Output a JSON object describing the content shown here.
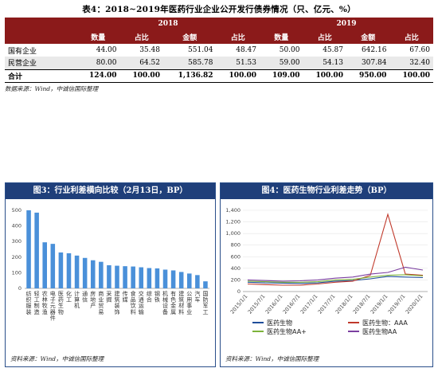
{
  "table": {
    "title": "表4：2018~2019年医药行业企业公开发行债券情况（只、亿元、%）",
    "years": [
      "2018",
      "2019"
    ],
    "columns": [
      "数量",
      "占比",
      "金额",
      "占比",
      "数量",
      "占比",
      "金额",
      "占比"
    ],
    "rows": [
      {
        "label": "国有企业",
        "values": [
          "44.00",
          "35.48",
          "551.04",
          "48.47",
          "50.00",
          "45.87",
          "642.16",
          "67.60"
        ]
      },
      {
        "label": "民营企业",
        "values": [
          "80.00",
          "64.52",
          "585.78",
          "51.53",
          "59.00",
          "54.13",
          "307.84",
          "32.40"
        ]
      }
    ],
    "total": {
      "label": "合计",
      "values": [
        "124.00",
        "100.00",
        "1,136.82",
        "100.00",
        "109.00",
        "100.00",
        "950.00",
        "100.00"
      ]
    },
    "source": "数据来源：Wind，中诚信国际整理"
  },
  "chart3": {
    "title": "图3：行业利差横向比较（2月13日，BP）",
    "source": "资料来源：Wind，中诚信国际整理",
    "chart_data": {
      "type": "bar",
      "categories": [
        "纺织服装",
        "轻工制造",
        "农林牧渔",
        "电子元器件",
        "医药生物",
        "化工",
        "计算机",
        "通信",
        "房地产",
        "商业贸易",
        "采掘",
        "建筑装饰",
        "传媒",
        "食品饮料",
        "交通运输",
        "综合",
        "钢铁",
        "机械设备",
        "有色金属",
        "建筑材料",
        "公用事业",
        "汽车",
        "国防军工"
      ],
      "values": [
        500,
        485,
        295,
        285,
        230,
        225,
        210,
        195,
        180,
        170,
        148,
        145,
        142,
        140,
        135,
        130,
        128,
        120,
        115,
        105,
        95,
        85,
        45
      ],
      "ylim": [
        0,
        500
      ],
      "yticks": [
        "0",
        "100",
        "200",
        "300",
        "400",
        "500"
      ],
      "color": "#4a90d9"
    }
  },
  "chart4": {
    "title": "图4：医药生物行业利差走势（BP）",
    "source": "资料来源：Wind，中诚信国际整理",
    "chart_data": {
      "type": "line",
      "x": [
        "2015/1/1",
        "2015/7/1",
        "2016/1/1",
        "2016/7/1",
        "2017/1/1",
        "2017/7/1",
        "2018/1/1",
        "2018/7/1",
        "2019/1/1",
        "2019/7/1",
        "2020/1/1"
      ],
      "ylim": [
        0,
        1400
      ],
      "yticks": [
        "0",
        "200",
        "400",
        "600",
        "800",
        "1,000",
        "1,200",
        "1,400"
      ],
      "series": [
        {
          "name": "医药生物",
          "color": "#1f4e9a",
          "values": [
            160,
            150,
            145,
            140,
            150,
            180,
            190,
            220,
            260,
            250,
            240
          ]
        },
        {
          "name": "医药生物：AAA",
          "color": "#c0392b",
          "values": [
            130,
            120,
            110,
            110,
            130,
            160,
            180,
            280,
            1330,
            300,
            280
          ]
        },
        {
          "name": "医药生物AA+",
          "color": "#7db33a",
          "values": [
            180,
            170,
            160,
            160,
            170,
            200,
            210,
            250,
            280,
            290,
            270
          ]
        },
        {
          "name": "医药生物AA",
          "color": "#7b3fa0",
          "values": [
            200,
            190,
            180,
            185,
            200,
            230,
            250,
            300,
            330,
            420,
            370
          ]
        }
      ]
    }
  }
}
